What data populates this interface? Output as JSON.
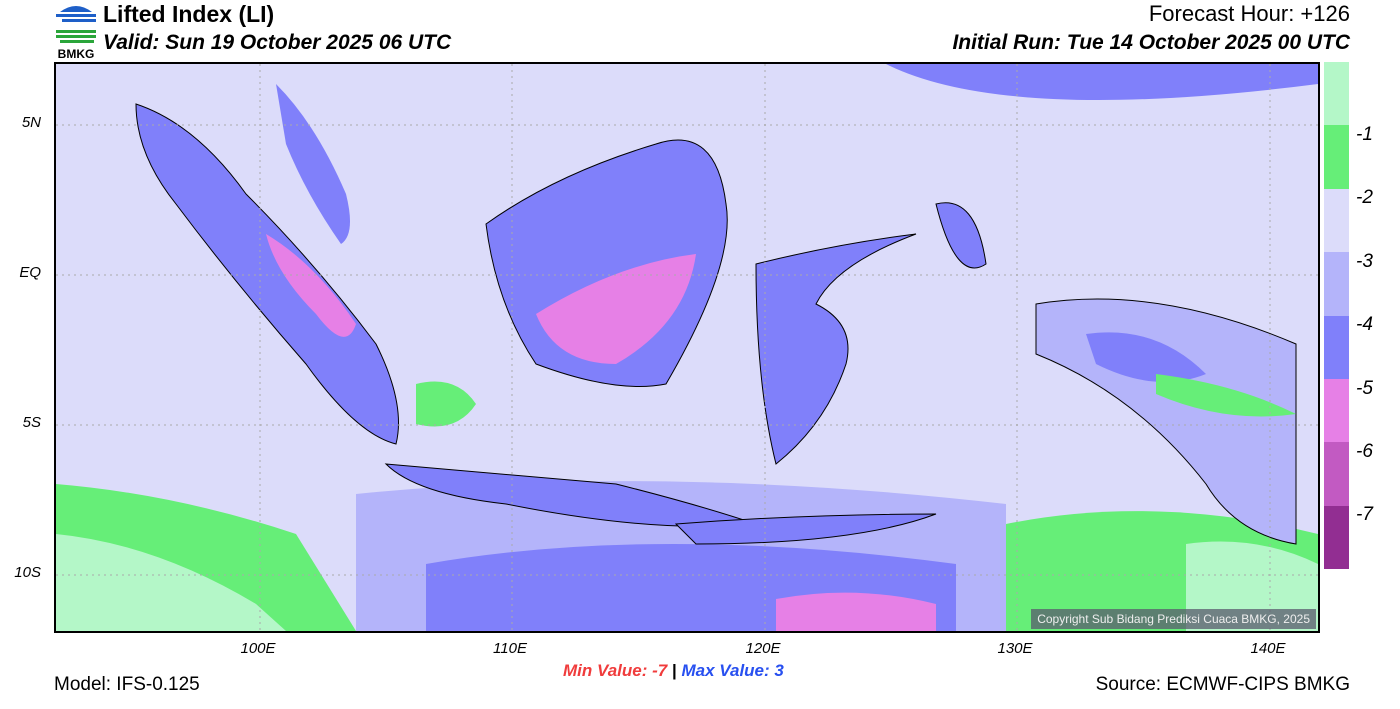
{
  "header": {
    "title": "Lifted Index (LI)",
    "valid": "Valid: Sun 19 October 2025 06 UTC",
    "forecast_hour": "Forecast Hour: +126",
    "initial_run": "Initial Run: Tue 14 October 2025 00 UTC",
    "logo_text": "BMKG"
  },
  "axes": {
    "lat_labels": [
      "5N",
      "EQ",
      "5S",
      "10S"
    ],
    "lon_labels": [
      "100E",
      "110E",
      "120E",
      "130E",
      "140E"
    ]
  },
  "colorbar": {
    "labels": [
      "-1",
      "-2",
      "-3",
      "-4",
      "-5",
      "-6",
      "-7"
    ],
    "colors": [
      "#b4f7c8",
      "#66ee78",
      "#dcdcfa",
      "#b4b4fa",
      "#8080fa",
      "#e680e6",
      "#c25ac2",
      "#922e92"
    ]
  },
  "stats": {
    "min_label": "Min Value:",
    "min_value": "-7",
    "separator": "|",
    "max_label": "Max Value:",
    "max_value": "3"
  },
  "footer": {
    "model": "Model: IFS-0.125",
    "source": "Source: ECMWF-CIPS BMKG",
    "copyright": "Copyright Sub Bidang Prediksi Cuaca BMKG, 2025"
  }
}
